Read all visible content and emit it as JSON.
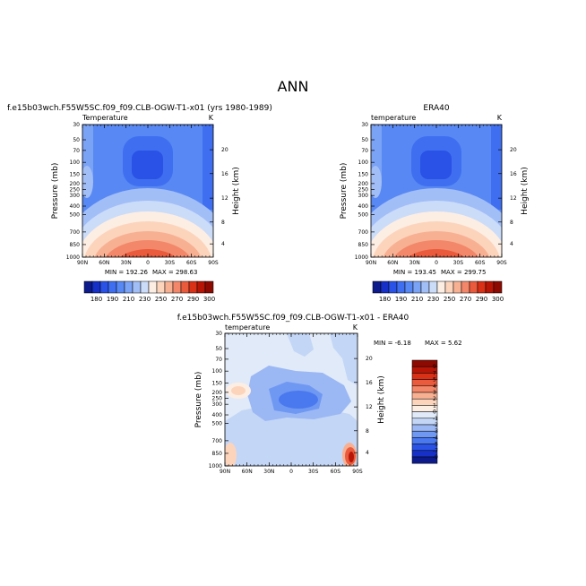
{
  "figure": {
    "title": "ANN"
  },
  "panel_labels": {
    "p1": {
      "title": "f.e15b03wch.F55W5SC.f09_f09.CLB-OGW-T1-x01 (yrs 1980-1989)",
      "left": "Temperature",
      "right": "K"
    },
    "p2": {
      "title": "ERA40",
      "left": "temperature",
      "right": "K"
    },
    "p3": {
      "title": "f.e15b03wch.F55W5SC.f09_f09.CLB-OGW-T1-x01 - ERA40",
      "left": "temperature",
      "right": "K"
    }
  },
  "chart_data": [
    {
      "id": "p1",
      "type": "heatmap",
      "title": "f.e15b03wch.F55W5SC.f09_f09.CLB-OGW-T1-x01 (yrs 1980-1989)",
      "subtitle_left": "Temperature",
      "units": "K",
      "xlabel": "",
      "ylabel": "Pressure (mb)",
      "y2label": "Height (km)",
      "x_ticks": [
        "90N",
        "60N",
        "30N",
        "0",
        "30S",
        "60S",
        "90S"
      ],
      "y_ticks": [
        "30",
        "50",
        "70",
        "100",
        "150",
        "200",
        "250",
        "300",
        "400",
        "500",
        "700",
        "850",
        "1000"
      ],
      "y2_ticks": [
        "20",
        "16",
        "12",
        "8",
        "4"
      ],
      "min_label": "MIN = 192.26",
      "max_label": "MAX = 298.63",
      "min": 192.26,
      "max": 298.63
    },
    {
      "id": "p2",
      "type": "heatmap",
      "title": "ERA40",
      "subtitle_left": "temperature",
      "units": "K",
      "xlabel": "",
      "ylabel": "Pressure (mb)",
      "y2label": "Height (km)",
      "x_ticks": [
        "90N",
        "60N",
        "30N",
        "0",
        "30S",
        "60S",
        "90S"
      ],
      "y_ticks": [
        "30",
        "50",
        "70",
        "100",
        "150",
        "200",
        "250",
        "300",
        "400",
        "500",
        "700",
        "850",
        "1000"
      ],
      "y2_ticks": [
        "20",
        "16",
        "12",
        "8",
        "4"
      ],
      "min_label": "MIN = 193.45",
      "max_label": "MAX = 299.75",
      "min": 193.45,
      "max": 299.75
    },
    {
      "id": "p3",
      "type": "heatmap",
      "title": "f.e15b03wch.F55W5SC.f09_f09.CLB-OGW-T1-x01 - ERA40",
      "subtitle_left": "temperature",
      "units": "K",
      "xlabel": "",
      "ylabel": "Pressure (mb)",
      "y2label": "Height (km)",
      "x_ticks": [
        "90N",
        "60N",
        "30N",
        "0",
        "30S",
        "60S",
        "90S"
      ],
      "y_ticks": [
        "30",
        "50",
        "70",
        "100",
        "150",
        "200",
        "250",
        "300",
        "400",
        "500",
        "700",
        "850",
        "1000"
      ],
      "y2_ticks": [
        "20",
        "16",
        "12",
        "8",
        "4"
      ],
      "min_label": "MIN = -6.18",
      "max_label": "MAX = 5.62",
      "min": -6.18,
      "max": 5.62
    }
  ],
  "colorbar_abs": {
    "labels": [
      "180",
      "190",
      "210",
      "230",
      "250",
      "270",
      "290",
      "300"
    ],
    "colors": [
      "#0c1a8c",
      "#1630c8",
      "#2a52e6",
      "#3f6ff0",
      "#5888f3",
      "#7aa2f5",
      "#a2bef7",
      "#cbdcf9",
      "#fdeee3",
      "#fcd4bc",
      "#f8b092",
      "#f2876a",
      "#ea5a3c",
      "#d93018",
      "#b71506",
      "#8c0a02"
    ]
  },
  "colorbar_diff": {
    "labels": [
      "9",
      "7",
      "5",
      "4",
      "3",
      "2",
      "1",
      "0",
      "-1",
      "-2",
      "-3",
      "-4",
      "-5",
      "-7",
      "-9"
    ],
    "colors": [
      "#8c0a02",
      "#b71506",
      "#d93018",
      "#ea5a3c",
      "#f2876a",
      "#f8b092",
      "#fcd4bc",
      "#fdeee3",
      "#e0eaf8",
      "#c3d6f6",
      "#9bb8f4",
      "#6f98f2",
      "#4a78ee",
      "#2a52e6",
      "#1630c8",
      "#0c1a8c"
    ]
  }
}
